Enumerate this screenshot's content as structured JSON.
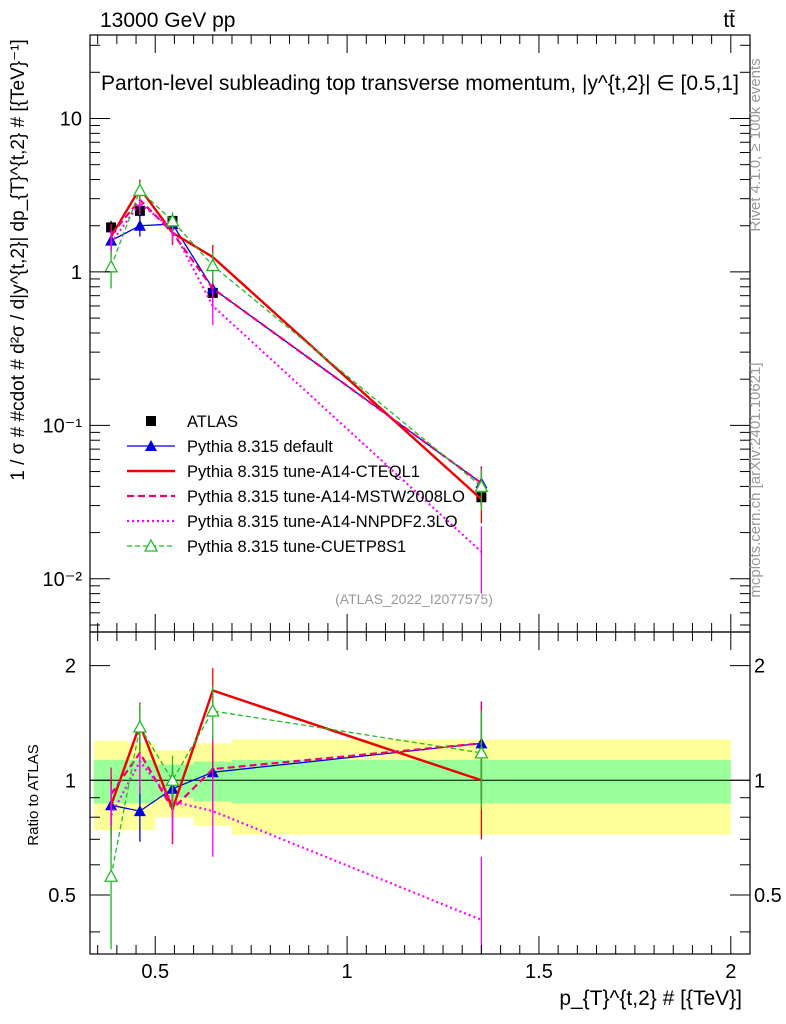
{
  "header": {
    "left_label": "13000 GeV pp",
    "right_label": "tt̄"
  },
  "side_labels": {
    "rivet": "Rivet 4.1.0, ≥ 100k events",
    "mcplots": "mcplots.cern.ch [arXiv:2401.10621]"
  },
  "colors": {
    "atlas": "#000000",
    "default": "#0000dd",
    "cteql1": "#ee0000",
    "mstw": "#ee0077",
    "nnpdf": "#ff00ff",
    "cuetp8s1": "#22bb22",
    "band_outer": "#ffff99",
    "band_inner": "#99ff99",
    "analysis_gray": "#999999"
  },
  "chart_data": [
    {
      "id": "main",
      "type": "line",
      "title": "Parton-level subleading top transverse momentum, |y^{t,2}| ∈ [0.5,1]",
      "ylabel": "1 / σ # #cdot # d²σ / d|y^{t,2}| dp_{T}^{t,2} # [{TeV}⁻¹]",
      "yscale": "log",
      "xlim": [
        0.33,
        2.05
      ],
      "ylim": [
        0.0045,
        35
      ],
      "y_ticks": [
        {
          "value": 0.01,
          "label": "10⁻²"
        },
        {
          "value": 0.1,
          "label": "10⁻¹"
        },
        {
          "value": 1,
          "label": "1"
        },
        {
          "value": 10,
          "label": "10"
        }
      ],
      "analysis_label": "(ATLAS_2022_I2077575)",
      "legend_position": "bottom-left",
      "series": [
        {
          "name": "ATLAS",
          "key": "atlas",
          "style": "marker-square",
          "x": [
            0.385,
            0.46,
            0.545,
            0.65,
            1.35
          ],
          "y": [
            1.95,
            2.5,
            2.15,
            0.73,
            0.034
          ],
          "yerr_low": [
            0.2,
            0.25,
            0.22,
            0.08,
            0.004
          ],
          "yerr_high": [
            0.2,
            0.25,
            0.22,
            0.08,
            0.004
          ]
        },
        {
          "name": "Pythia 8.315 default",
          "key": "default",
          "style": "solid-triangle",
          "x": [
            0.385,
            0.46,
            0.545,
            0.65,
            1.35
          ],
          "y": [
            1.6,
            2.0,
            2.05,
            0.78,
            0.042
          ],
          "yerr_low": [
            0.25,
            0.3,
            0.3,
            0.12,
            0.012
          ],
          "yerr_high": [
            0.25,
            0.3,
            0.3,
            0.12,
            0.012
          ]
        },
        {
          "name": "Pythia 8.315 tune-A14-CTEQL1",
          "key": "cteql1",
          "style": "solid",
          "x": [
            0.385,
            0.46,
            0.545,
            0.65,
            1.35
          ],
          "y": [
            1.7,
            3.5,
            1.8,
            1.25,
            0.033
          ],
          "yerr_low": [
            0.3,
            0.5,
            0.3,
            0.25,
            0.01
          ],
          "yerr_high": [
            0.3,
            0.5,
            0.3,
            0.25,
            0.01
          ]
        },
        {
          "name": "Pythia 8.315 tune-A14-MSTW2008LO",
          "key": "mstw",
          "style": "dashed",
          "x": [
            0.385,
            0.46,
            0.545,
            0.65,
            1.35
          ],
          "y": [
            1.75,
            2.95,
            1.8,
            0.78,
            0.042
          ],
          "yerr_low": [
            0.3,
            0.45,
            0.3,
            0.2,
            0.012
          ],
          "yerr_high": [
            0.3,
            0.45,
            0.3,
            0.2,
            0.012
          ]
        },
        {
          "name": "Pythia 8.315 tune-A14-NNPDF2.3LO",
          "key": "nnpdf",
          "style": "dotted",
          "x": [
            0.385,
            0.46,
            0.545,
            0.65,
            1.35
          ],
          "y": [
            1.55,
            2.8,
            1.9,
            0.6,
            0.015
          ],
          "yerr_low": [
            0.3,
            0.45,
            0.3,
            0.15,
            0.007
          ],
          "yerr_high": [
            0.3,
            0.45,
            0.3,
            0.15,
            0.007
          ]
        },
        {
          "name": "Pythia 8.315 tune-CUETP8S1",
          "key": "cuetp8s1",
          "style": "dashed-open-triangle",
          "x": [
            0.385,
            0.46,
            0.545,
            0.65,
            1.35
          ],
          "y": [
            1.08,
            3.4,
            2.15,
            1.1,
            0.04
          ],
          "yerr_low": [
            0.3,
            0.45,
            0.3,
            0.25,
            0.012
          ],
          "yerr_high": [
            0.3,
            0.45,
            0.3,
            0.25,
            0.012
          ]
        }
      ]
    },
    {
      "id": "ratio",
      "type": "line",
      "title": "",
      "xlabel": "p_{T}^{t,2} # [{TeV}]",
      "ylabel": "Ratio to ATLAS",
      "xlim": [
        0.33,
        2.05
      ],
      "ylim": [
        0.35,
        2.45
      ],
      "reference_line": 1,
      "x_ticks": [
        {
          "value": 0.5,
          "label": "0.5"
        },
        {
          "value": 1,
          "label": "1"
        },
        {
          "value": 1.5,
          "label": "1.5"
        },
        {
          "value": 2,
          "label": "2"
        }
      ],
      "y_ticks": [
        {
          "value": 0.5,
          "label": "0.5"
        },
        {
          "value": 1,
          "label": "1"
        },
        {
          "value": 2,
          "label": "2"
        }
      ],
      "bands": [
        {
          "x0": 0.34,
          "x1": 0.43,
          "inner": [
            0.87,
            1.13
          ],
          "outer": [
            0.74,
            1.27
          ]
        },
        {
          "x0": 0.43,
          "x1": 0.5,
          "inner": [
            0.87,
            1.13
          ],
          "outer": [
            0.74,
            1.25
          ]
        },
        {
          "x0": 0.5,
          "x1": 0.6,
          "inner": [
            0.9,
            1.1
          ],
          "outer": [
            0.8,
            1.2
          ]
        },
        {
          "x0": 0.6,
          "x1": 0.7,
          "inner": [
            0.88,
            1.12
          ],
          "outer": [
            0.76,
            1.25
          ]
        },
        {
          "x0": 0.7,
          "x1": 2.0,
          "inner": [
            0.87,
            1.13
          ],
          "outer": [
            0.72,
            1.28
          ]
        }
      ],
      "series": [
        {
          "name": "Pythia 8.315 default",
          "key": "default",
          "style": "solid-triangle",
          "x": [
            0.385,
            0.46,
            0.545,
            0.65,
            1.35
          ],
          "y": [
            0.86,
            0.83,
            0.95,
            1.05,
            1.25
          ],
          "yerr_low": [
            0.14,
            0.14,
            0.14,
            0.16,
            0.36
          ],
          "yerr_high": [
            0.14,
            0.14,
            0.14,
            0.16,
            0.36
          ]
        },
        {
          "name": "Pythia 8.315 tune-A14-CTEQL1",
          "key": "cteql1",
          "style": "solid",
          "x": [
            0.385,
            0.46,
            0.545,
            0.65,
            1.35
          ],
          "y": [
            0.86,
            1.4,
            0.84,
            1.72,
            1.0
          ],
          "yerr_low": [
            0.16,
            0.2,
            0.16,
            0.25,
            0.3
          ],
          "yerr_high": [
            0.16,
            0.2,
            0.16,
            0.25,
            0.3
          ]
        },
        {
          "name": "Pythia 8.315 tune-A14-MSTW2008LO",
          "key": "mstw",
          "style": "dashed",
          "x": [
            0.385,
            0.46,
            0.545,
            0.65,
            1.35
          ],
          "y": [
            0.92,
            1.18,
            0.84,
            1.07,
            1.25
          ],
          "yerr_low": [
            0.16,
            0.2,
            0.16,
            0.24,
            0.36
          ],
          "yerr_high": [
            0.16,
            0.2,
            0.16,
            0.24,
            0.36
          ]
        },
        {
          "name": "Pythia 8.315 tune-A14-NNPDF2.3LO",
          "key": "nnpdf",
          "style": "dotted",
          "x": [
            0.385,
            0.46,
            0.545,
            0.65,
            1.35
          ],
          "y": [
            0.81,
            1.12,
            0.88,
            0.83,
            0.43
          ],
          "yerr_low": [
            0.16,
            0.2,
            0.16,
            0.2,
            0.2
          ],
          "yerr_high": [
            0.16,
            0.2,
            0.16,
            0.2,
            0.2
          ]
        },
        {
          "name": "Pythia 8.315 tune-CUETP8S1",
          "key": "cuetp8s1",
          "style": "dashed-open-triangle",
          "x": [
            0.385,
            0.46,
            0.545,
            0.65,
            1.35
          ],
          "y": [
            0.56,
            1.38,
            1.0,
            1.52,
            1.18
          ],
          "yerr_low": [
            0.2,
            0.2,
            0.16,
            0.24,
            0.34
          ],
          "yerr_high": [
            0.2,
            0.2,
            0.16,
            0.24,
            0.34
          ]
        }
      ]
    }
  ]
}
